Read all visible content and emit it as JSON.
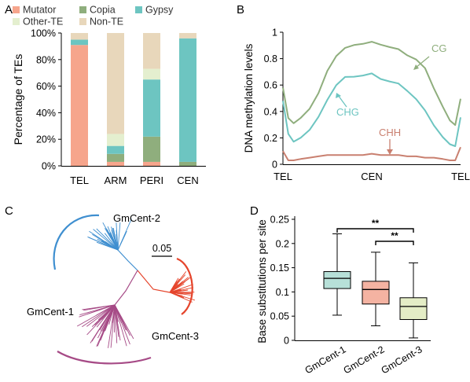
{
  "chart_data": [
    {
      "panel": "A",
      "type": "bar",
      "stacked": true,
      "ylabel": "Percentage of TEs",
      "yticks": [
        "0%",
        "20%",
        "40%",
        "60%",
        "80%",
        "100%"
      ],
      "ylim": [
        0,
        100
      ],
      "categories": [
        "TEL",
        "ARM",
        "PERI",
        "CEN"
      ],
      "legend": [
        {
          "name": "Mutator",
          "color": "#f6a58c"
        },
        {
          "name": "Copia",
          "color": "#8fae7d"
        },
        {
          "name": "Gypsy",
          "color": "#6dc5c1"
        },
        {
          "name": "Other-TE",
          "color": "#e4efcf"
        },
        {
          "name": "Non-TE",
          "color": "#e8d7bb"
        }
      ],
      "series": [
        {
          "name": "Mutator",
          "color": "#f6a58c",
          "values": [
            91,
            3,
            3,
            0
          ]
        },
        {
          "name": "Copia",
          "color": "#8fae7d",
          "values": [
            0,
            6,
            19,
            3
          ]
        },
        {
          "name": "Gypsy",
          "color": "#6dc5c1",
          "values": [
            4,
            6,
            43,
            93
          ]
        },
        {
          "name": "Other-TE",
          "color": "#e4efcf",
          "values": [
            0,
            9,
            8,
            0
          ]
        },
        {
          "name": "Non-TE",
          "color": "#e8d7bb",
          "values": [
            5,
            76,
            27,
            4
          ]
        }
      ]
    },
    {
      "panel": "B",
      "type": "line",
      "ylabel": "DNA methylation levels",
      "yticks": [
        "0",
        "0.2",
        "0.4",
        "0.6",
        "0.8",
        "1"
      ],
      "ylim": [
        0,
        1
      ],
      "xticklabels": [
        "TEL",
        "CEN",
        "TEL"
      ],
      "x": [
        0,
        0.03,
        0.06,
        0.1,
        0.15,
        0.2,
        0.25,
        0.3,
        0.35,
        0.4,
        0.45,
        0.5,
        0.55,
        0.6,
        0.65,
        0.7,
        0.75,
        0.8,
        0.85,
        0.9,
        0.94,
        0.97,
        1
      ],
      "series": [
        {
          "name": "CG",
          "color": "#8fae7d",
          "values": [
            0.58,
            0.34,
            0.3,
            0.35,
            0.43,
            0.55,
            0.71,
            0.81,
            0.87,
            0.9,
            0.92,
            0.94,
            0.91,
            0.88,
            0.86,
            0.82,
            0.8,
            0.74,
            0.58,
            0.43,
            0.32,
            0.29,
            0.5
          ]
        },
        {
          "name": "CHG",
          "color": "#6dc5c1",
          "values": [
            0.48,
            0.22,
            0.16,
            0.2,
            0.27,
            0.37,
            0.49,
            0.59,
            0.65,
            0.66,
            0.68,
            0.7,
            0.65,
            0.62,
            0.6,
            0.55,
            0.5,
            0.42,
            0.3,
            0.2,
            0.14,
            0.13,
            0.36
          ]
        },
        {
          "name": "CHH",
          "color": "#c98070",
          "values": [
            0.1,
            0.03,
            0.03,
            0.04,
            0.05,
            0.06,
            0.07,
            0.07,
            0.07,
            0.07,
            0.07,
            0.08,
            0.07,
            0.07,
            0.07,
            0.06,
            0.06,
            0.05,
            0.05,
            0.04,
            0.03,
            0.03,
            0.13
          ]
        }
      ]
    },
    {
      "panel": "C",
      "type": "tree",
      "scale_label": "0.05",
      "clades": [
        {
          "name": "GmCent-1",
          "color": "#a64a86"
        },
        {
          "name": "GmCent-2",
          "color": "#3f8fd0"
        },
        {
          "name": "GmCent-3",
          "color": "#e5452c"
        }
      ]
    },
    {
      "panel": "D",
      "type": "boxplot",
      "ylabel": "Base substitutions per site",
      "yticks": [
        "0",
        "0.05",
        "0.1",
        "0.15",
        "0.2",
        "0.25"
      ],
      "ylim": [
        0,
        0.25
      ],
      "categories": [
        "GmCent-1",
        "GmCent-2",
        "GmCent-3"
      ],
      "boxes": [
        {
          "name": "GmCent-1",
          "color": "#b7e0d8",
          "min": 0.052,
          "q1": 0.107,
          "median": 0.128,
          "q3": 0.142,
          "max": 0.22
        },
        {
          "name": "GmCent-2",
          "color": "#f4b3a2",
          "min": 0.03,
          "q1": 0.075,
          "median": 0.105,
          "q3": 0.122,
          "max": 0.182
        },
        {
          "name": "GmCent-3",
          "color": "#e4edc6",
          "min": 0.005,
          "q1": 0.043,
          "median": 0.07,
          "q3": 0.088,
          "max": 0.16
        }
      ],
      "significance": [
        {
          "from": "GmCent-1",
          "to": "GmCent-3",
          "label": "**"
        },
        {
          "from": "GmCent-2",
          "to": "GmCent-3",
          "label": "**"
        }
      ]
    }
  ],
  "panel_labels": {
    "a": "A",
    "b": "B",
    "c": "C",
    "d": "D"
  }
}
